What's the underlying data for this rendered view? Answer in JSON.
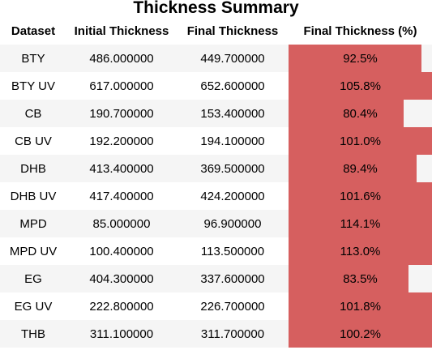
{
  "title": "Thickness Summary",
  "colors": {
    "bar": "#d65f5f",
    "row_stripe": "#f5f5f5",
    "row_plain": "#ffffff"
  },
  "bar_scale_max_percent": 100.0,
  "columns": [
    "Dataset",
    "Initial Thickness",
    "Final Thickness",
    "Final Thickness (%)"
  ],
  "rows": [
    {
      "dataset": "BTY",
      "initial": "486.000000",
      "final": "449.700000",
      "pct": "92.5%",
      "pct_value": 92.5
    },
    {
      "dataset": "BTY UV",
      "initial": "617.000000",
      "final": "652.600000",
      "pct": "105.8%",
      "pct_value": 105.8
    },
    {
      "dataset": "CB",
      "initial": "190.700000",
      "final": "153.400000",
      "pct": "80.4%",
      "pct_value": 80.4
    },
    {
      "dataset": "CB UV",
      "initial": "192.200000",
      "final": "194.100000",
      "pct": "101.0%",
      "pct_value": 101.0
    },
    {
      "dataset": "DHB",
      "initial": "413.400000",
      "final": "369.500000",
      "pct": "89.4%",
      "pct_value": 89.4
    },
    {
      "dataset": "DHB UV",
      "initial": "417.400000",
      "final": "424.200000",
      "pct": "101.6%",
      "pct_value": 101.6
    },
    {
      "dataset": "MPD",
      "initial": "85.000000",
      "final": "96.900000",
      "pct": "114.1%",
      "pct_value": 114.1
    },
    {
      "dataset": "MPD UV",
      "initial": "100.400000",
      "final": "113.500000",
      "pct": "113.0%",
      "pct_value": 113.0
    },
    {
      "dataset": "EG",
      "initial": "404.300000",
      "final": "337.600000",
      "pct": "83.5%",
      "pct_value": 83.5
    },
    {
      "dataset": "EG UV",
      "initial": "222.800000",
      "final": "226.700000",
      "pct": "101.8%",
      "pct_value": 101.8
    },
    {
      "dataset": "THB",
      "initial": "311.100000",
      "final": "311.700000",
      "pct": "100.2%",
      "pct_value": 100.2
    }
  ]
}
